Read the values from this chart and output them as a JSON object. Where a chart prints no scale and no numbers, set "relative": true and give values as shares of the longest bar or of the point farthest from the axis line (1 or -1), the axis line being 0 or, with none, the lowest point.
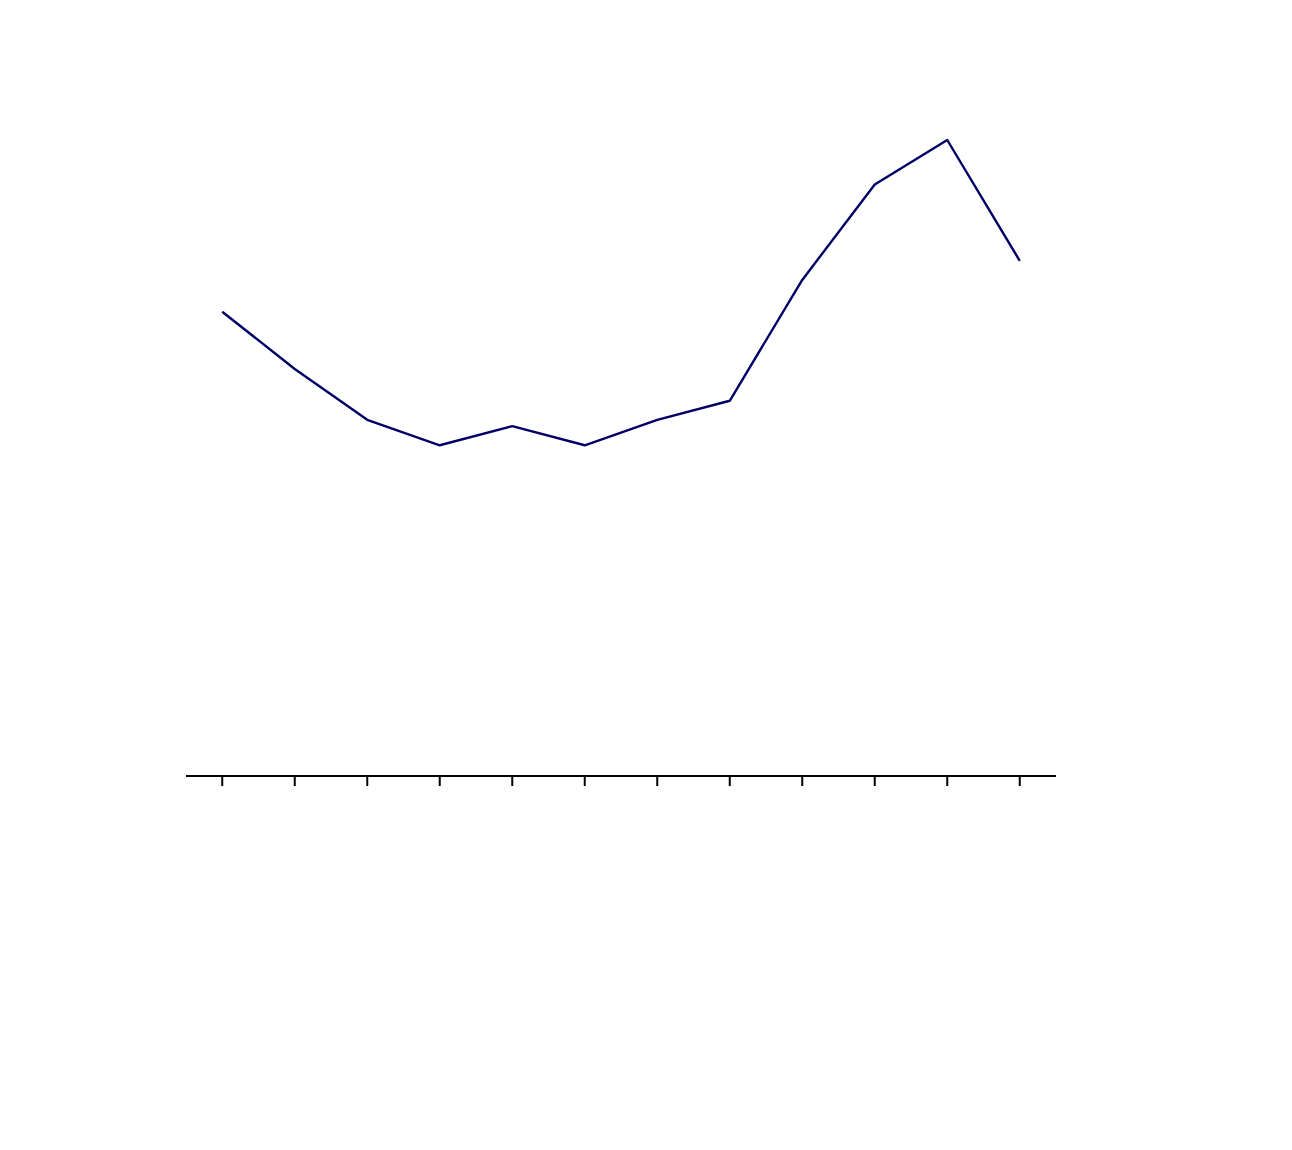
{
  "chart_data": {
    "type": "line",
    "relative": true,
    "categories": [
      null,
      null,
      null,
      null,
      null,
      null,
      null,
      null,
      null,
      null,
      null,
      null
    ],
    "series": [
      {
        "color": "#000066",
        "values": [
          0.73,
          0.64,
          0.56,
          0.52,
          0.55,
          0.52,
          0.56,
          0.59,
          0.78,
          0.93,
          1,
          0.81
        ]
      }
    ],
    "marker": "none",
    "grid": false
  }
}
